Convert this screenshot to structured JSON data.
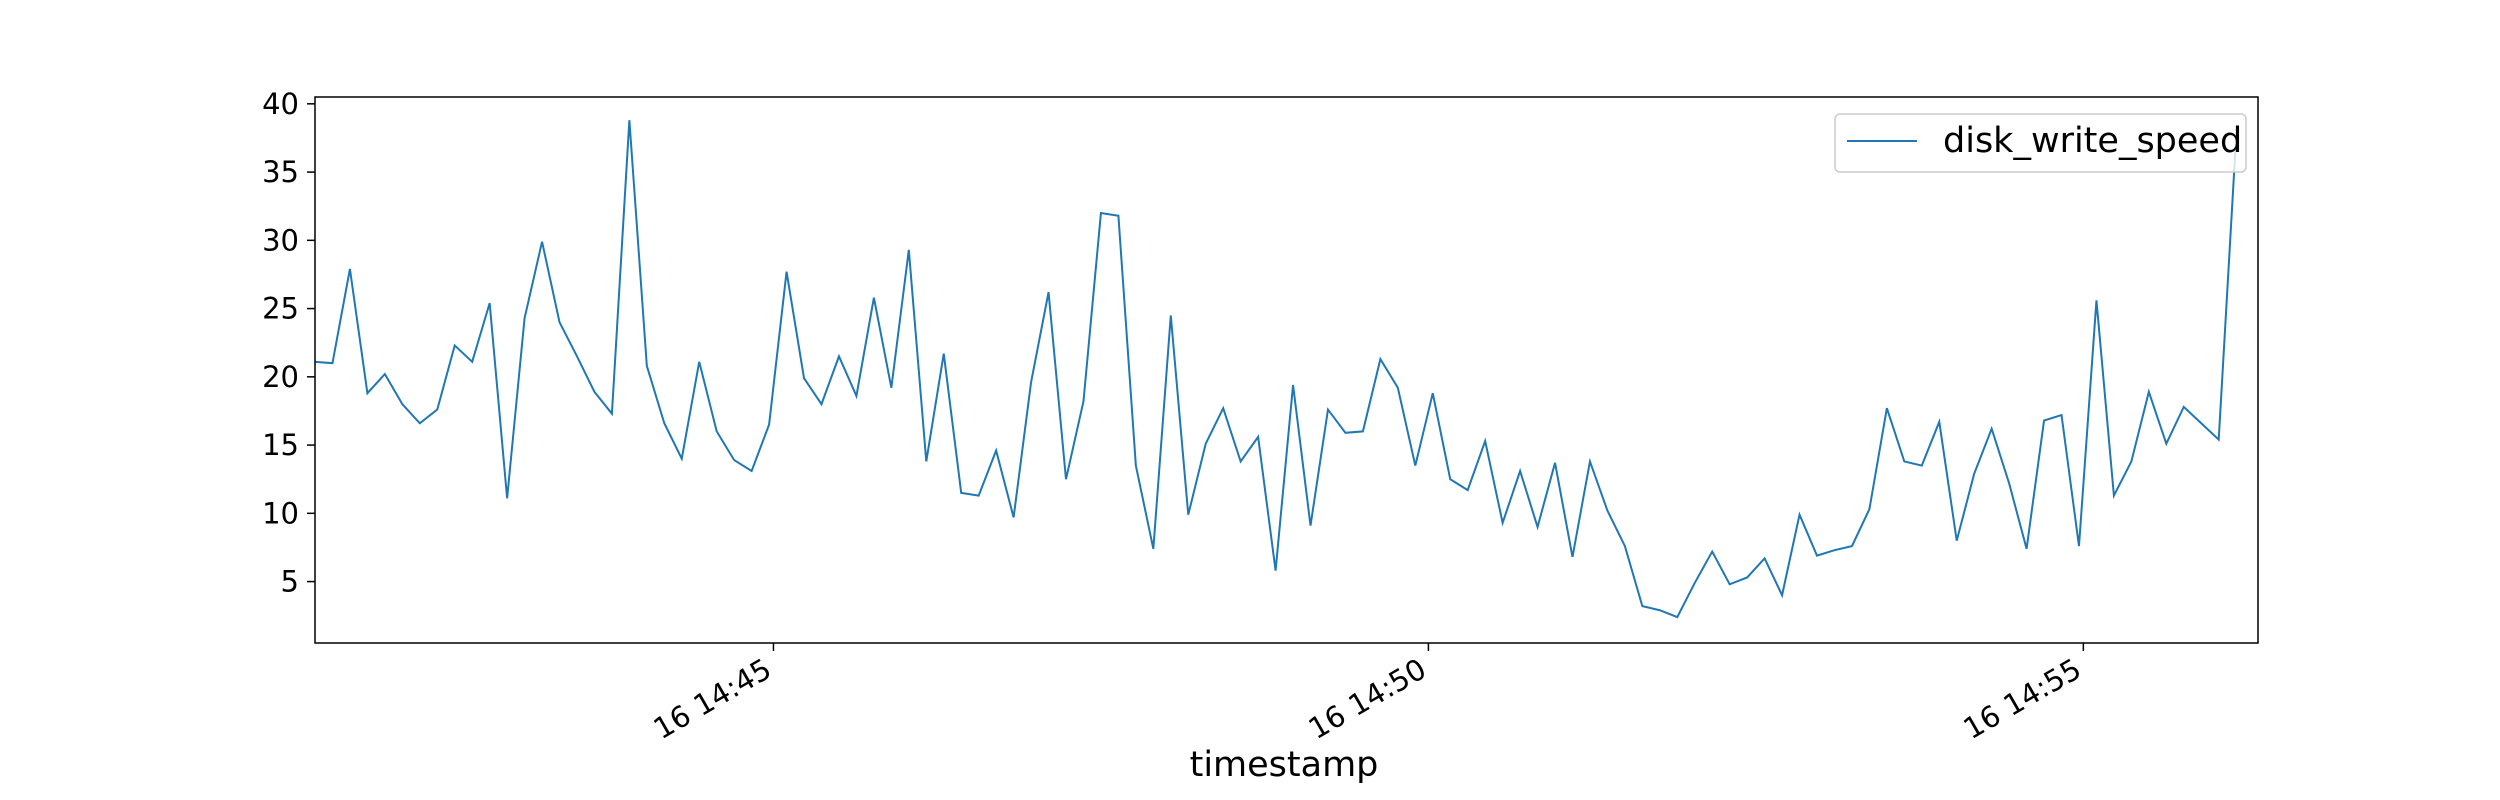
{
  "chart_data": {
    "type": "line",
    "title": "",
    "xlabel": "timestamp",
    "ylabel": "",
    "x_start": "16 14:41:30",
    "x_end": "16 14:56:20",
    "x_step_seconds": 8,
    "xlim": [
      "16 14:41:30",
      "16 14:56:20"
    ],
    "ylim": [
      0.5,
      40.5
    ],
    "yticks": [
      5,
      10,
      15,
      20,
      25,
      30,
      35,
      40
    ],
    "xticks": [
      {
        "time": "16 14:45",
        "label": "16 14:45"
      },
      {
        "time": "16 14:50",
        "label": "16 14:50"
      },
      {
        "time": "16 14:55",
        "label": "16 14:55"
      }
    ],
    "grid": false,
    "legend_position": "top-right",
    "series": [
      {
        "name": "disk_write_speed",
        "color": "#1f77b4",
        "values": [
          21.1,
          21.0,
          27.9,
          18.8,
          20.2,
          18.0,
          16.6,
          17.6,
          22.3,
          21.1,
          25.4,
          11.1,
          24.3,
          29.9,
          24.0,
          21.5,
          18.9,
          17.3,
          38.8,
          20.8,
          16.6,
          14.0,
          21.1,
          16.0,
          13.9,
          13.1,
          16.5,
          27.7,
          19.9,
          18.0,
          21.5,
          18.6,
          25.8,
          19.2,
          29.3,
          13.8,
          21.7,
          11.5,
          11.3,
          14.6,
          9.7,
          19.6,
          26.2,
          12.5,
          18.2,
          32.0,
          31.8,
          13.5,
          7.4,
          24.5,
          9.9,
          15.1,
          17.7,
          13.8,
          15.6,
          5.8,
          19.4,
          9.1,
          17.6,
          15.9,
          16.0,
          21.3,
          19.2,
          13.5,
          18.8,
          12.5,
          11.7,
          15.3,
          9.3,
          13.1,
          9.0,
          13.7,
          6.8,
          13.8,
          10.2,
          7.6,
          3.2,
          2.9,
          2.4,
          4.9,
          7.2,
          4.8,
          5.3,
          6.7,
          4.0,
          9.9,
          6.9,
          7.3,
          7.6,
          10.3,
          17.7,
          13.8,
          13.5,
          16.7,
          8.0,
          12.9,
          16.2,
          12.2,
          7.4,
          16.8,
          17.2,
          7.6,
          25.6,
          11.3,
          13.8,
          18.9,
          15.1,
          17.8,
          16.6,
          15.4,
          37.6
        ]
      }
    ]
  }
}
